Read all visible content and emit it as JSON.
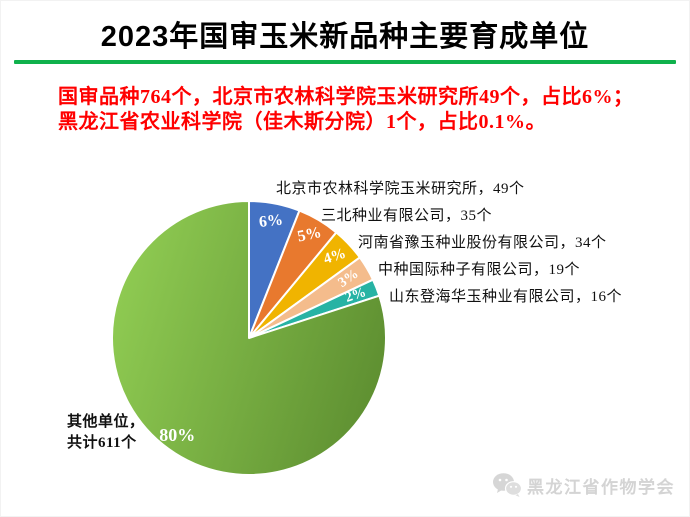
{
  "page": {
    "title": "2023年国审玉米新品种主要育成单位"
  },
  "divider_color": "#0FB14C",
  "summary": {
    "color": "#FF0000",
    "lines": [
      "国审品种764个，北京市农林科学院玉米研究所49个，占比6%；",
      "黑龙江省农业科学院（佳木斯分院）1个，占比0.1%。"
    ]
  },
  "chart_data": {
    "type": "pie",
    "title": "2023年国审玉米新品种主要育成单位",
    "total_varieties": 764,
    "start_angle_deg": -90,
    "direction": "clockwise",
    "stroke_color": "#ffffff",
    "percent_label_color": "#ffffff",
    "slices": [
      {
        "label": "北京市农林科学院玉米研究所",
        "count": 49,
        "value": 6,
        "percent_label": "6%",
        "color": "#4472C4",
        "callout": "北京市农林科学院玉米研究所，49个"
      },
      {
        "label": "三北种业有限公司",
        "count": 35,
        "value": 5,
        "percent_label": "5%",
        "color": "#E8792E",
        "callout": "三北种业有限公司，35个"
      },
      {
        "label": "河南省豫玉种业股份有限公司",
        "count": 34,
        "value": 4,
        "percent_label": "4%",
        "color": "#F0B400",
        "callout": "河南省豫玉种业股份有限公司，34个"
      },
      {
        "label": "中种国际种子有限公司",
        "count": 19,
        "value": 3,
        "percent_label": "3%",
        "color": "#F4BC8C",
        "callout": "中种国际种子有限公司，19个"
      },
      {
        "label": "山东登海华玉种业有限公司",
        "count": 16,
        "value": 2,
        "percent_label": "2%",
        "color": "#27B3A4",
        "callout": "山东登海华玉种业有限公司，16个"
      },
      {
        "label": "其他单位",
        "count": 611,
        "value": 80,
        "percent_label": "80%",
        "color": "#7FBF45",
        "gradient": {
          "from": "#8FCB52",
          "to": "#5E8F31"
        },
        "callout_lines": [
          "其他单位，",
          "共计611个"
        ]
      }
    ],
    "legend_position": "callouts-right",
    "grid": false
  },
  "watermark": {
    "icon": "wechat-icon",
    "text": "黑龙江省作物学会"
  }
}
